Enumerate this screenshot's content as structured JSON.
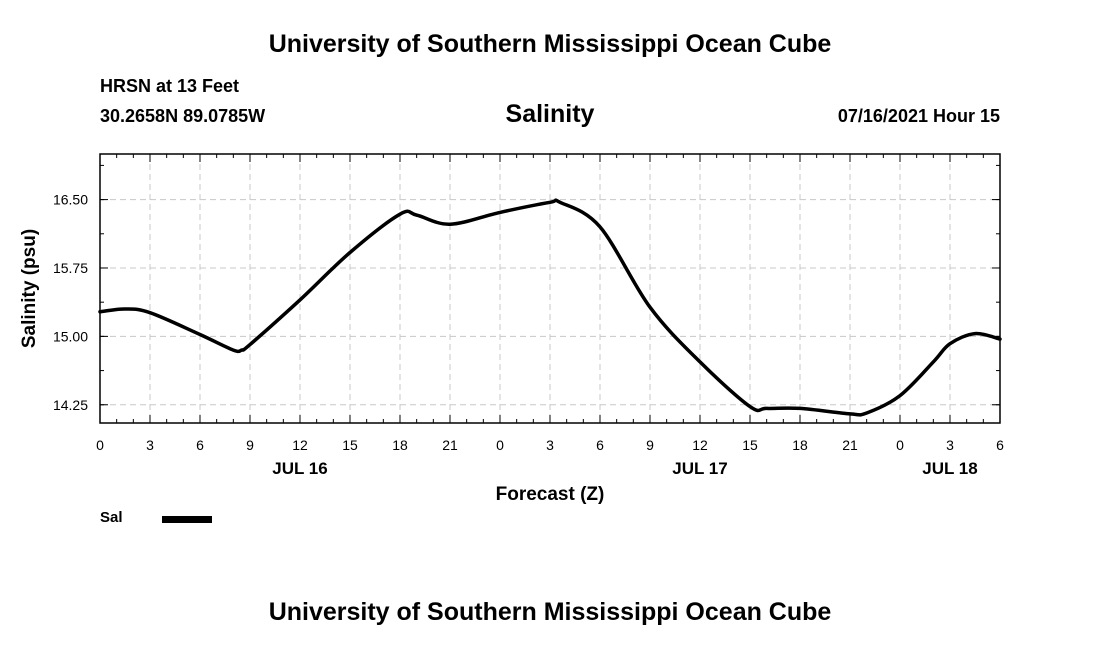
{
  "header": {
    "title": "University of Southern Mississippi Ocean Cube",
    "station": "HRSN at 13 Feet",
    "coords": "30.2658N  89.0785W",
    "chart_title": "Salinity",
    "datetime": "07/16/2021 Hour 15"
  },
  "footer": {
    "title": "University of Southern Mississippi Ocean Cube"
  },
  "legend": {
    "label": "Sal",
    "color": "#000000"
  },
  "chart_data": {
    "type": "line",
    "title": "Salinity",
    "xlabel": "Forecast (Z)",
    "ylabel": "Salinity (psu)",
    "xlim": [
      0,
      54
    ],
    "ylim": [
      14.05,
      17.0
    ],
    "x_tick_values": [
      0,
      3,
      6,
      9,
      12,
      15,
      18,
      21,
      24,
      27,
      30,
      33,
      36,
      39,
      42,
      45,
      48,
      51,
      54
    ],
    "x_tick_labels": [
      "0",
      "3",
      "6",
      "9",
      "12",
      "15",
      "18",
      "21",
      "0",
      "3",
      "6",
      "9",
      "12",
      "15",
      "18",
      "21",
      "0",
      "3",
      "6"
    ],
    "y_tick_values": [
      14.25,
      15.0,
      15.75,
      16.5
    ],
    "y_tick_labels": [
      "14.25",
      "15.00",
      "15.75",
      "16.50"
    ],
    "date_labels": [
      {
        "x": 12,
        "label": "JUL 16"
      },
      {
        "x": 36,
        "label": "JUL 17"
      },
      {
        "x": 51,
        "label": "JUL 18"
      }
    ],
    "grid": true,
    "series": [
      {
        "name": "Sal",
        "x": [
          0,
          1.5,
          3,
          6,
          8,
          8.5,
          9,
          12,
          15,
          18,
          19,
          21,
          24,
          27,
          27.6,
          30,
          33,
          36,
          39,
          40,
          42,
          45,
          46,
          48,
          50,
          51,
          52.5,
          54
        ],
        "values": [
          15.27,
          15.3,
          15.26,
          15.02,
          14.85,
          14.85,
          14.91,
          15.4,
          15.92,
          16.34,
          16.33,
          16.23,
          16.36,
          16.47,
          16.47,
          16.2,
          15.32,
          14.72,
          14.23,
          14.21,
          14.21,
          14.15,
          14.16,
          14.35,
          14.72,
          14.92,
          15.03,
          14.97
        ]
      }
    ]
  }
}
